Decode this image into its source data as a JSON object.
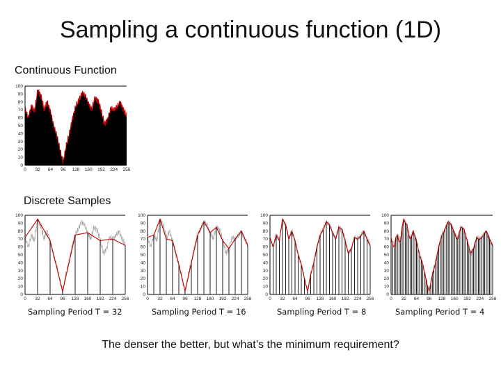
{
  "title": "Sampling a continuous function (1D)",
  "continuous_label": "Continuous Function",
  "discrete_label": "Discrete Samples",
  "footer": "The denser the better, but what’s the minimum requirement?",
  "captions": [
    "Sampling Period T = 32",
    "Sampling Period T = 16",
    "Sampling Period T = 8",
    "Sampling Period T = 4"
  ],
  "colors": {
    "fill": "#000000",
    "curve": "#c00000",
    "faded": "#aaaaaa",
    "stems": "#000000"
  },
  "chart_data": [
    {
      "type": "area",
      "xlim": [
        0,
        256
      ],
      "ylim": [
        0,
        100
      ],
      "xticks": [
        0,
        32,
        64,
        96,
        128,
        160,
        192,
        224,
        256
      ],
      "yticks": [
        0,
        10,
        20,
        30,
        40,
        50,
        60,
        70,
        80,
        90,
        100
      ],
      "x": [
        0,
        8,
        16,
        24,
        32,
        40,
        48,
        56,
        64,
        72,
        80,
        88,
        96,
        104,
        112,
        120,
        128,
        136,
        144,
        152,
        160,
        168,
        176,
        184,
        192,
        200,
        208,
        216,
        224,
        232,
        240,
        248,
        256
      ],
      "values": [
        72,
        60,
        75,
        68,
        95,
        88,
        70,
        80,
        68,
        50,
        38,
        20,
        4,
        25,
        40,
        60,
        75,
        82,
        92,
        88,
        78,
        70,
        85,
        82,
        68,
        52,
        58,
        72,
        70,
        74,
        80,
        70,
        62
      ]
    },
    {
      "type": "line",
      "xlim": [
        0,
        256
      ],
      "ylim": [
        0,
        100
      ],
      "xticks": [
        0,
        32,
        64,
        96,
        128,
        160,
        192,
        224,
        256
      ],
      "yticks": [
        0,
        10,
        20,
        30,
        40,
        50,
        60,
        70,
        80,
        90,
        100
      ],
      "period": 32,
      "samples_x": [
        0,
        32,
        64,
        96,
        128,
        160,
        192,
        224,
        256
      ],
      "samples_y": [
        72,
        95,
        68,
        4,
        75,
        78,
        68,
        70,
        62
      ]
    },
    {
      "type": "line",
      "xlim": [
        0,
        256
      ],
      "ylim": [
        0,
        100
      ],
      "xticks": [
        0,
        32,
        64,
        96,
        128,
        160,
        192,
        224,
        256
      ],
      "yticks": [
        0,
        10,
        20,
        30,
        40,
        50,
        60,
        70,
        80,
        90,
        100
      ],
      "period": 16,
      "samples_x": [
        0,
        16,
        32,
        48,
        64,
        80,
        96,
        112,
        128,
        144,
        160,
        176,
        192,
        208,
        224,
        240,
        256
      ],
      "samples_y": [
        72,
        75,
        95,
        70,
        68,
        38,
        4,
        40,
        75,
        92,
        78,
        85,
        68,
        58,
        70,
        80,
        62
      ]
    },
    {
      "type": "line",
      "xlim": [
        0,
        256
      ],
      "ylim": [
        0,
        100
      ],
      "xticks": [
        0,
        32,
        64,
        96,
        128,
        160,
        192,
        224,
        256
      ],
      "yticks": [
        0,
        10,
        20,
        30,
        40,
        50,
        60,
        70,
        80,
        90,
        100
      ],
      "period": 8,
      "samples_x": [
        0,
        8,
        16,
        24,
        32,
        40,
        48,
        56,
        64,
        72,
        80,
        88,
        96,
        104,
        112,
        120,
        128,
        136,
        144,
        152,
        160,
        168,
        176,
        184,
        192,
        200,
        208,
        216,
        224,
        232,
        240,
        248,
        256
      ],
      "samples_y": [
        72,
        60,
        75,
        68,
        95,
        88,
        70,
        80,
        68,
        50,
        38,
        20,
        4,
        25,
        40,
        60,
        75,
        82,
        92,
        88,
        78,
        70,
        85,
        82,
        68,
        52,
        58,
        72,
        70,
        74,
        80,
        70,
        62
      ]
    },
    {
      "type": "line",
      "xlim": [
        0,
        256
      ],
      "ylim": [
        0,
        100
      ],
      "xticks": [
        0,
        32,
        64,
        96,
        128,
        160,
        192,
        224,
        256
      ],
      "yticks": [
        0,
        10,
        20,
        30,
        40,
        50,
        60,
        70,
        80,
        90,
        100
      ],
      "period": 4,
      "samples_x": [
        0,
        4,
        8,
        12,
        16,
        20,
        24,
        28,
        32,
        36,
        40,
        44,
        48,
        52,
        56,
        60,
        64,
        68,
        72,
        76,
        80,
        84,
        88,
        92,
        96,
        100,
        104,
        108,
        112,
        116,
        120,
        124,
        128,
        132,
        136,
        140,
        144,
        148,
        152,
        156,
        160,
        164,
        168,
        172,
        176,
        180,
        184,
        188,
        192,
        196,
        200,
        204,
        208,
        212,
        216,
        220,
        224,
        228,
        232,
        236,
        240,
        244,
        248,
        252,
        256
      ],
      "samples_y": [
        72,
        62,
        60,
        72,
        75,
        66,
        68,
        86,
        95,
        90,
        88,
        76,
        70,
        74,
        80,
        74,
        68,
        58,
        50,
        44,
        38,
        28,
        20,
        10,
        4,
        14,
        25,
        32,
        40,
        50,
        60,
        68,
        75,
        78,
        82,
        88,
        92,
        90,
        88,
        82,
        78,
        72,
        70,
        78,
        85,
        84,
        82,
        74,
        68,
        60,
        52,
        55,
        58,
        66,
        72,
        70,
        70,
        72,
        74,
        78,
        80,
        76,
        70,
        66,
        62
      ]
    }
  ]
}
